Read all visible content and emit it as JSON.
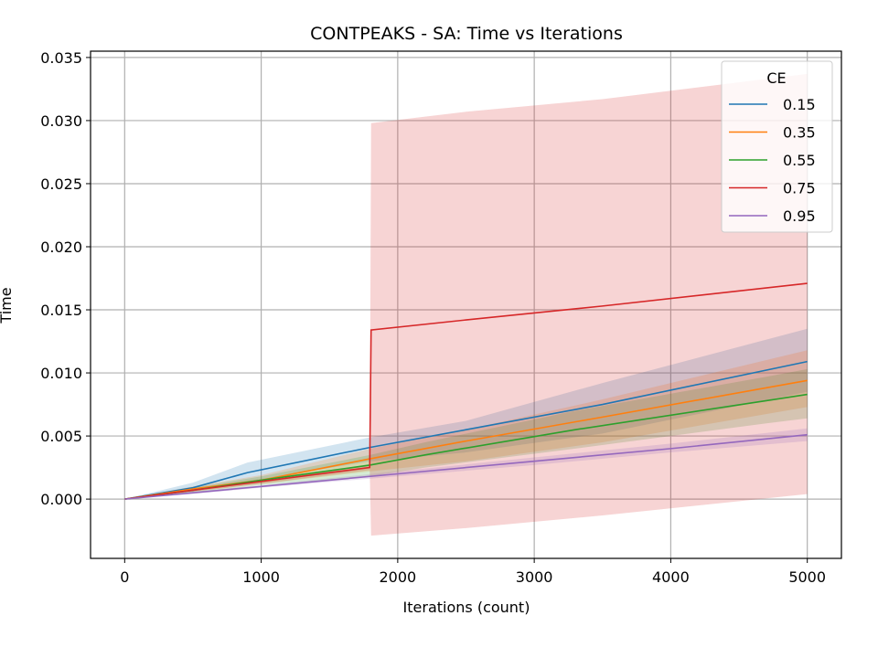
{
  "chart_data": {
    "type": "line",
    "title": "CONTPEAKS - SA: Time vs Iterations",
    "xlabel": "Iterations (count)",
    "ylabel": "Time",
    "xlim": [
      -250,
      5250
    ],
    "ylim": [
      -0.0047,
      0.0355
    ],
    "xticks": [
      0,
      1000,
      2000,
      3000,
      4000,
      5000
    ],
    "yticks": [
      0.0,
      0.005,
      0.01,
      0.015,
      0.02,
      0.025,
      0.03,
      0.035
    ],
    "xtick_labels": [
      "0",
      "1000",
      "2000",
      "3000",
      "4000",
      "5000"
    ],
    "ytick_labels": [
      "0.000",
      "0.005",
      "0.010",
      "0.015",
      "0.020",
      "0.025",
      "0.030",
      "0.035"
    ],
    "grid": true,
    "legend": {
      "title": "CE",
      "placement": "top-right"
    },
    "series": [
      {
        "name": "0.15",
        "color": "#1f77b4",
        "x": [
          0,
          500,
          900,
          1800,
          2500,
          3500,
          5000
        ],
        "y": [
          0,
          0.0009,
          0.0021,
          0.0041,
          0.0055,
          0.0075,
          0.0109
        ],
        "lower": [
          0,
          0.0006,
          0.0014,
          0.003,
          0.0037,
          0.0052,
          0.0085
        ],
        "upper": [
          0,
          0.0013,
          0.0029,
          0.0049,
          0.0062,
          0.0092,
          0.0135
        ]
      },
      {
        "name": "0.35",
        "color": "#ff7f0e",
        "x": [
          0,
          500,
          1000,
          1800,
          2500,
          3500,
          5000
        ],
        "y": [
          0,
          0.0008,
          0.0015,
          0.0032,
          0.0046,
          0.0065,
          0.0094
        ],
        "lower": [
          0,
          0.0006,
          0.0012,
          0.0022,
          0.003,
          0.0045,
          0.0073
        ],
        "upper": [
          0,
          0.001,
          0.0019,
          0.004,
          0.0055,
          0.0079,
          0.0118
        ]
      },
      {
        "name": "0.55",
        "color": "#2ca02c",
        "x": [
          0,
          500,
          1000,
          1800,
          2200,
          3300,
          4700,
          5000
        ],
        "y": [
          0,
          0.0007,
          0.0015,
          0.0027,
          0.0035,
          0.0055,
          0.0078,
          0.0083
        ],
        "lower": [
          0,
          0.0005,
          0.0011,
          0.0018,
          0.0025,
          0.004,
          0.006,
          0.0064
        ],
        "upper": [
          0,
          0.0009,
          0.0018,
          0.0035,
          0.0045,
          0.007,
          0.0097,
          0.0103
        ]
      },
      {
        "name": "0.75",
        "color": "#d62728",
        "x": [
          0,
          500,
          1000,
          1795,
          1805,
          2500,
          3500,
          5000
        ],
        "y": [
          0,
          0.0007,
          0.0014,
          0.0025,
          0.0134,
          0.0142,
          0.0153,
          0.0171
        ],
        "lower": [
          0,
          0.0006,
          0.0012,
          0.0023,
          -0.0029,
          -0.0023,
          -0.0013,
          0.0004
        ],
        "upper": [
          0,
          0.0008,
          0.0016,
          0.0027,
          0.0298,
          0.0307,
          0.0317,
          0.0337
        ]
      },
      {
        "name": "0.95",
        "color": "#9467bd",
        "x": [
          0,
          500,
          1000,
          2000,
          3000,
          4000,
          5000
        ],
        "y": [
          0,
          0.0005,
          0.001,
          0.002,
          0.003,
          0.004,
          0.0051
        ],
        "lower": [
          0,
          0.0004,
          0.0009,
          0.0018,
          0.0027,
          0.0037,
          0.0046
        ],
        "upper": [
          0,
          0.0006,
          0.0011,
          0.0022,
          0.0033,
          0.0044,
          0.0056
        ]
      }
    ]
  }
}
